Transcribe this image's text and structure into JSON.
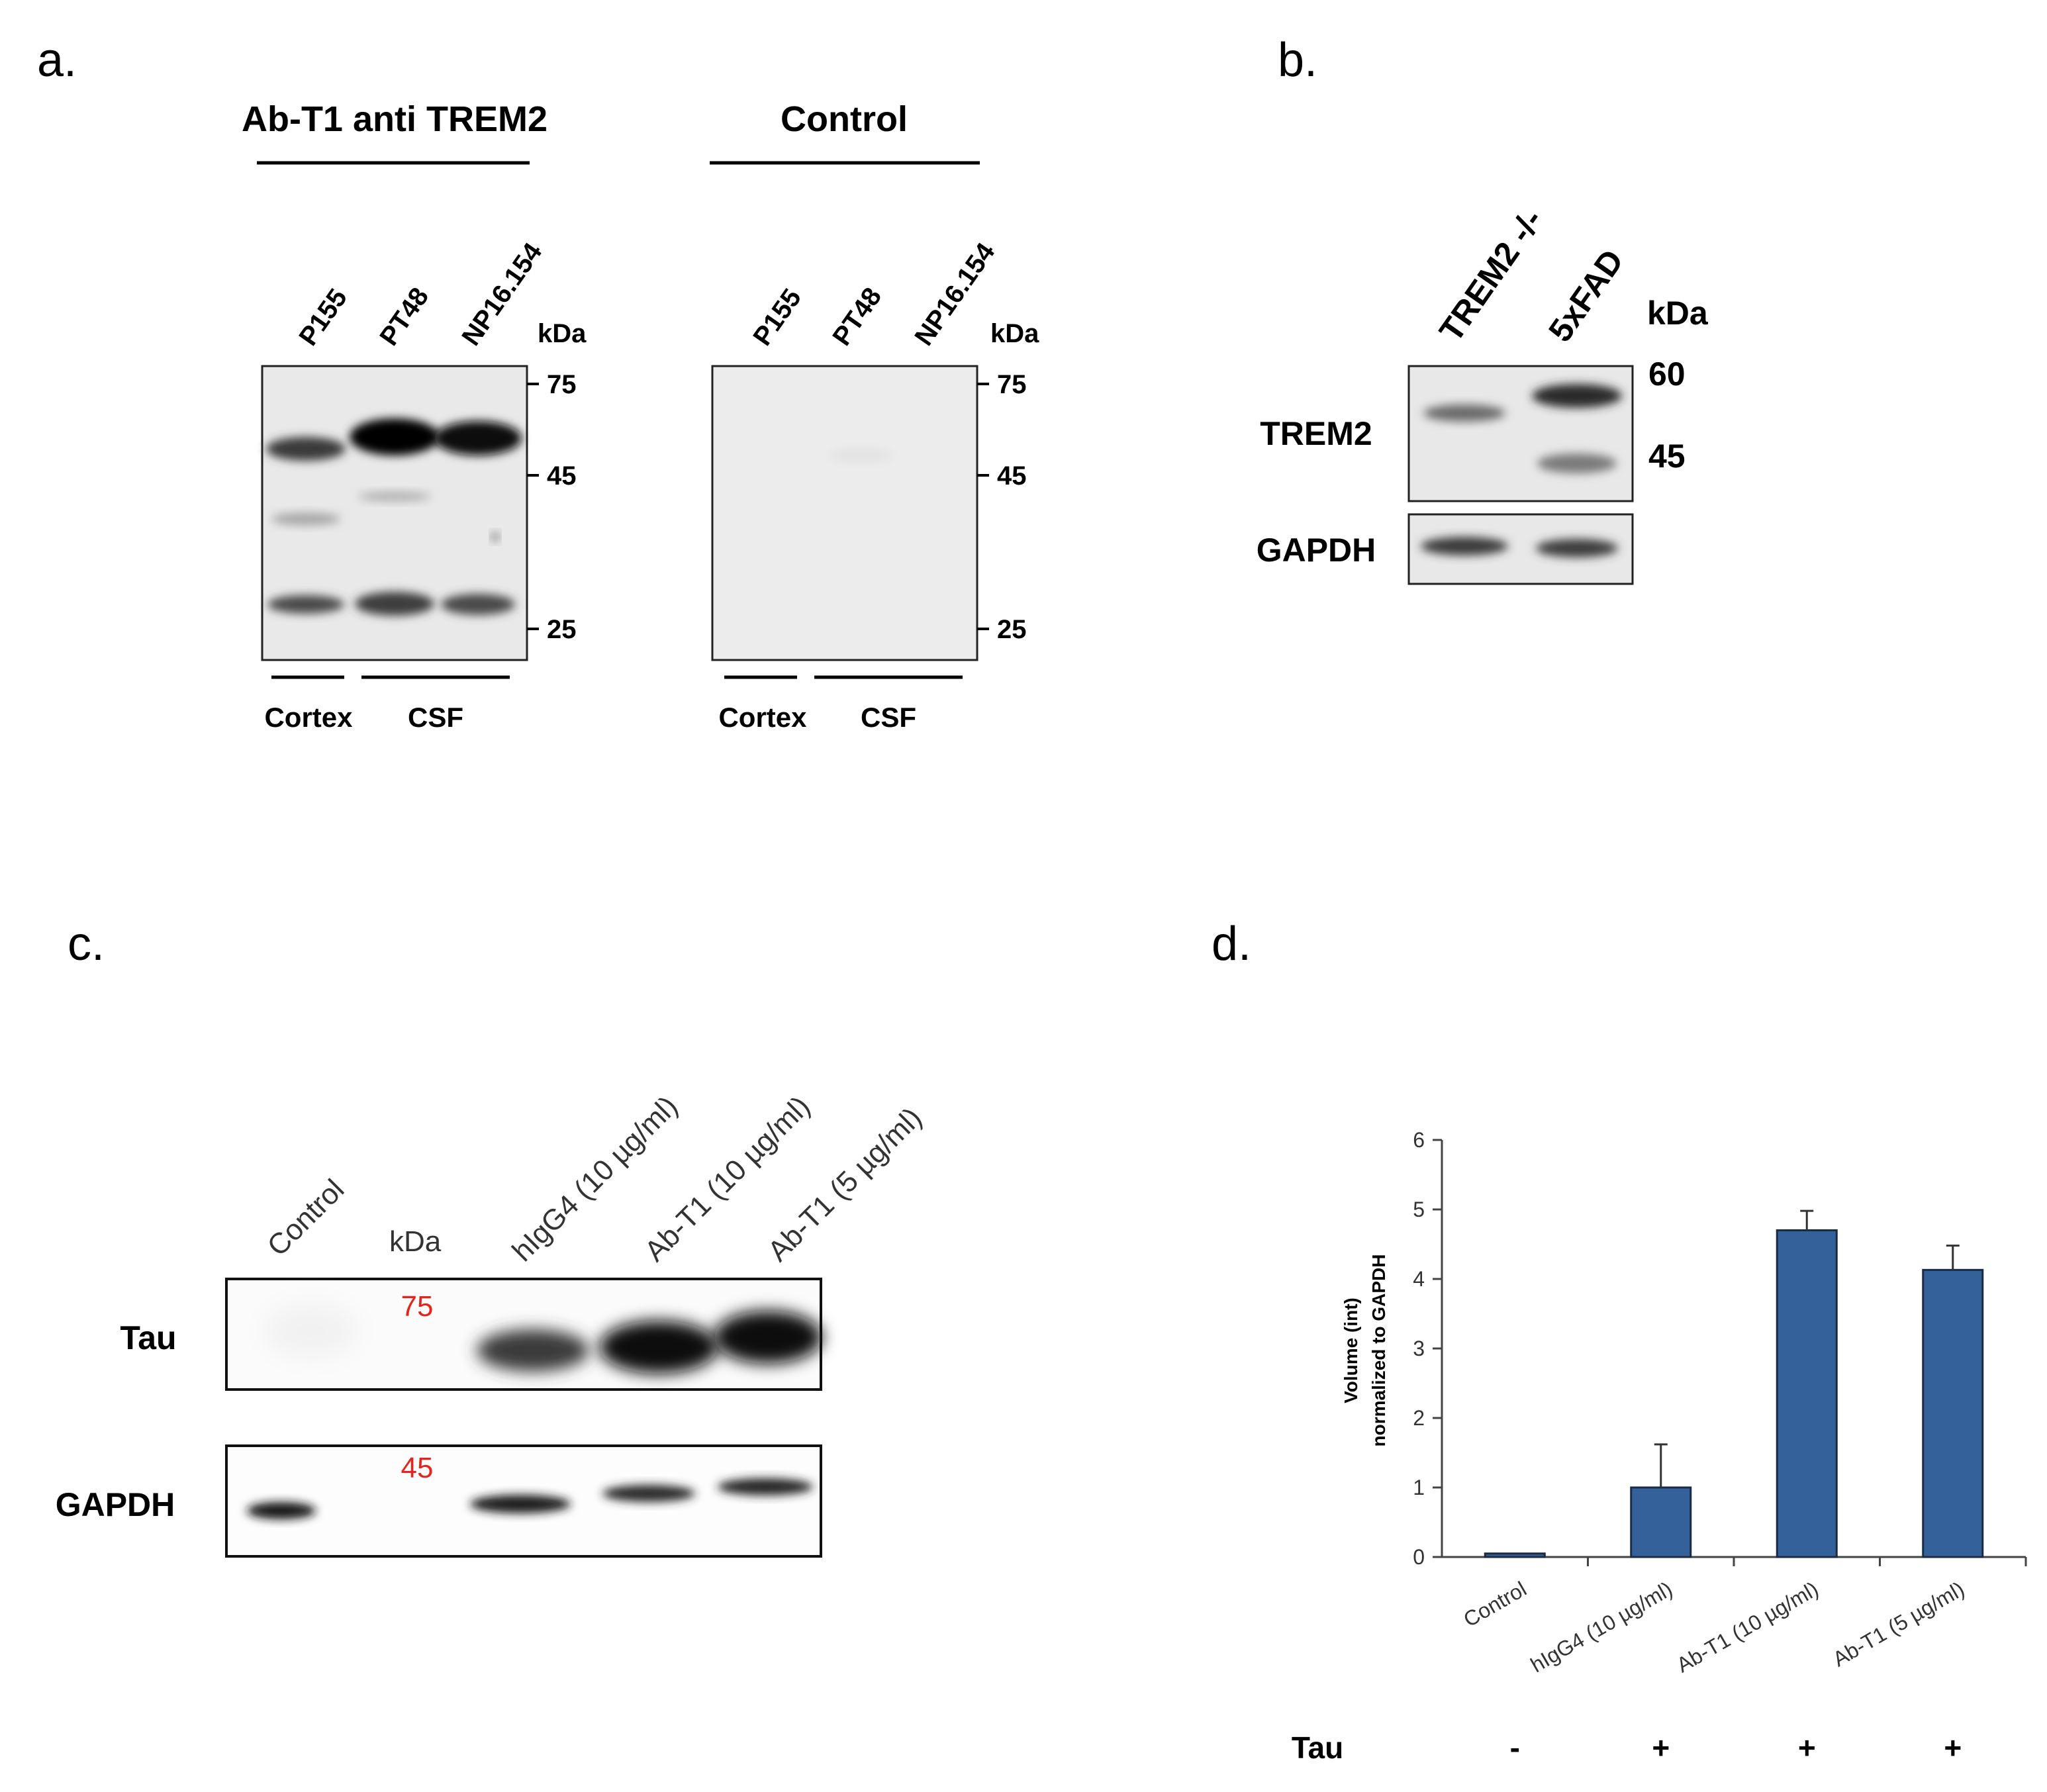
{
  "panel_a": {
    "letter": "a.",
    "blot1": {
      "title": "Ab-T1 anti TREM2",
      "lanes": [
        "P155",
        "PT48",
        "NP16.154"
      ],
      "kda_label": "kDa",
      "markers": [
        "75",
        "45",
        "25"
      ],
      "groups": [
        "Cortex",
        "CSF"
      ]
    },
    "blot2": {
      "title": "Control",
      "lanes": [
        "P155",
        "PT48",
        "NP16.154"
      ],
      "kda_label": "kDa",
      "markers": [
        "75",
        "45",
        "25"
      ],
      "groups": [
        "Cortex",
        "CSF"
      ]
    }
  },
  "panel_b": {
    "letter": "b.",
    "lanes": [
      "TREM2 -/-",
      "5xFAD"
    ],
    "kda_label": "kDa",
    "markers": [
      "60",
      "45"
    ],
    "rows": [
      "TREM2",
      "GAPDH"
    ]
  },
  "panel_c": {
    "letter": "c.",
    "lanes": [
      "Control",
      "kDa",
      "hIgG4 (10 µg/ml)",
      "Ab-T1 (10 µg/ml)",
      "Ab-T1 (5 µg/ml)"
    ],
    "rows": [
      "Tau",
      "GAPDH"
    ],
    "markers": [
      "75",
      "45"
    ]
  },
  "panel_d": {
    "letter": "d."
  },
  "chart_data": {
    "type": "bar",
    "ylabel": "Volume (int) normalized to GAPDH",
    "ylabel_lines": [
      "Volume (int)",
      "normalized to GAPDH"
    ],
    "categories": [
      "Control",
      "hIgG4 (10 µg/ml)",
      "Ab-T1 (10 µg/ml)",
      "Ab-T1 (5 µg/ml)"
    ],
    "values": [
      0.05,
      1.0,
      4.7,
      4.13
    ],
    "errors": [
      0,
      0.62,
      0.28,
      0.35
    ],
    "ylim": [
      0,
      6
    ],
    "yticks": [
      "0",
      "1",
      "2",
      "3",
      "4",
      "5",
      "6"
    ],
    "tau_label": "Tau",
    "tau_signs": [
      "-",
      "+",
      "+",
      "+"
    ],
    "bar_color": "#35619a"
  }
}
